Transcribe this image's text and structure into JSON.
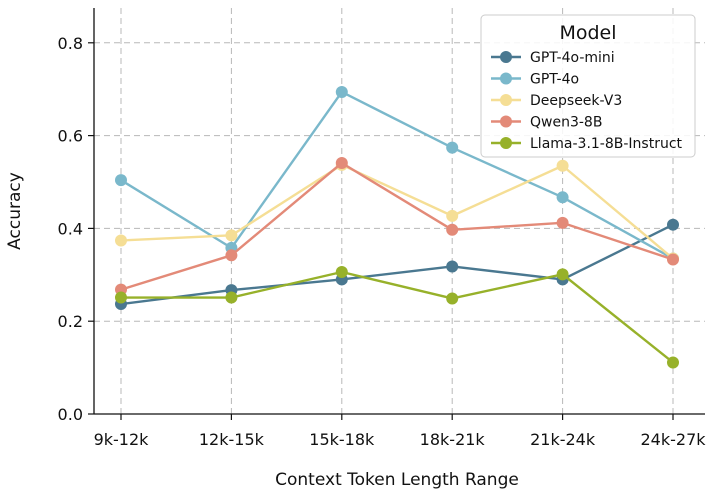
{
  "chart_data": {
    "type": "line",
    "title": "",
    "xlabel": "Context Token Length Range",
    "ylabel": "Accuracy",
    "categories": [
      "9k-12k",
      "12k-15k",
      "15k-18k",
      "18k-21k",
      "21k-24k",
      "24k-27k"
    ],
    "ylim": [
      0,
      0.87
    ],
    "yticks": [
      0.0,
      0.2,
      0.4,
      0.6,
      0.8
    ],
    "ytick_labels": [
      "0.0",
      "0.2",
      "0.4",
      "0.6",
      "0.8"
    ],
    "grid": true,
    "legend": {
      "title": "Model",
      "position": "top-right"
    },
    "series": [
      {
        "name": "GPT-4o-mini",
        "color": "#4a7890",
        "values": [
          0.237,
          0.267,
          0.29,
          0.318,
          0.29,
          0.408
        ]
      },
      {
        "name": "GPT-4o",
        "color": "#7ab8cb",
        "values": [
          0.504,
          0.358,
          0.694,
          0.574,
          0.467,
          0.335
        ]
      },
      {
        "name": "Deepseek-V3",
        "color": "#f5de95",
        "values": [
          0.374,
          0.385,
          0.537,
          0.427,
          0.535,
          0.335
        ]
      },
      {
        "name": "Qwen3-8B",
        "color": "#e38a78",
        "values": [
          0.268,
          0.342,
          0.541,
          0.397,
          0.412,
          0.333
        ]
      },
      {
        "name": "Llama-3.1-8B-Instruct",
        "color": "#97b12a",
        "values": [
          0.251,
          0.251,
          0.306,
          0.249,
          0.301,
          0.111
        ]
      }
    ]
  }
}
